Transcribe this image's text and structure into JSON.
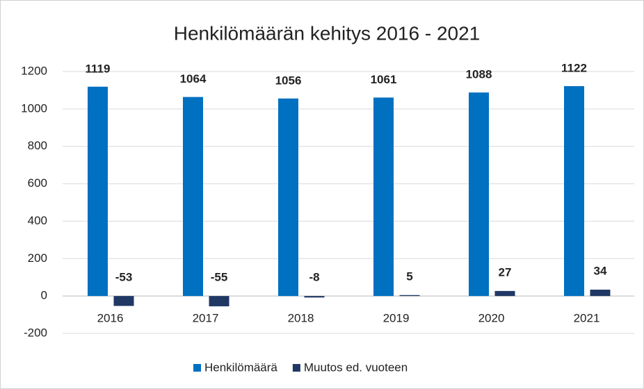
{
  "chart_data": {
    "type": "bar",
    "title": "Henkilömäärän kehitys 2016 - 2021",
    "categories": [
      "2016",
      "2017",
      "2018",
      "2019",
      "2020",
      "2021"
    ],
    "series": [
      {
        "name": "Henkilömäärä",
        "color": "#0070c0",
        "values": [
          1119,
          1064,
          1056,
          1061,
          1088,
          1122
        ]
      },
      {
        "name": "Muutos ed. vuoteen",
        "color": "#203864",
        "values": [
          -53,
          -55,
          -8,
          5,
          27,
          34
        ]
      }
    ],
    "ylim": [
      -200,
      1200
    ],
    "yticks": [
      -200,
      0,
      200,
      400,
      600,
      800,
      1000,
      1200
    ],
    "grid": true,
    "legend": "bottom"
  }
}
